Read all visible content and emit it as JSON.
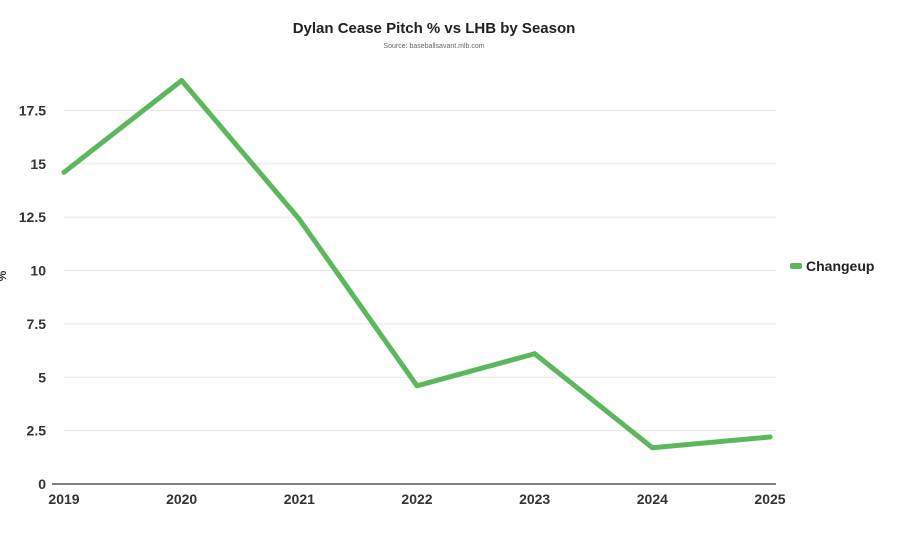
{
  "chart_data": {
    "type": "line",
    "title": "Dylan Cease Pitch % vs LHB by Season",
    "subtitle": "Source: baseballsavant.mlb.com",
    "ylabel": "%",
    "x": [
      "2019",
      "2020",
      "2021",
      "2022",
      "2023",
      "2024",
      "2025"
    ],
    "series": [
      {
        "name": "Changeup",
        "color": "#5cb85c",
        "values": [
          14.6,
          18.9,
          12.4,
          4.6,
          6.1,
          1.7,
          2.2
        ]
      }
    ],
    "ylim": [
      0,
      20
    ],
    "yticks": [
      "0",
      "2.5",
      "5",
      "7.5",
      "10",
      "12.5",
      "15",
      "17.5"
    ],
    "grid": true,
    "legend": "right"
  }
}
